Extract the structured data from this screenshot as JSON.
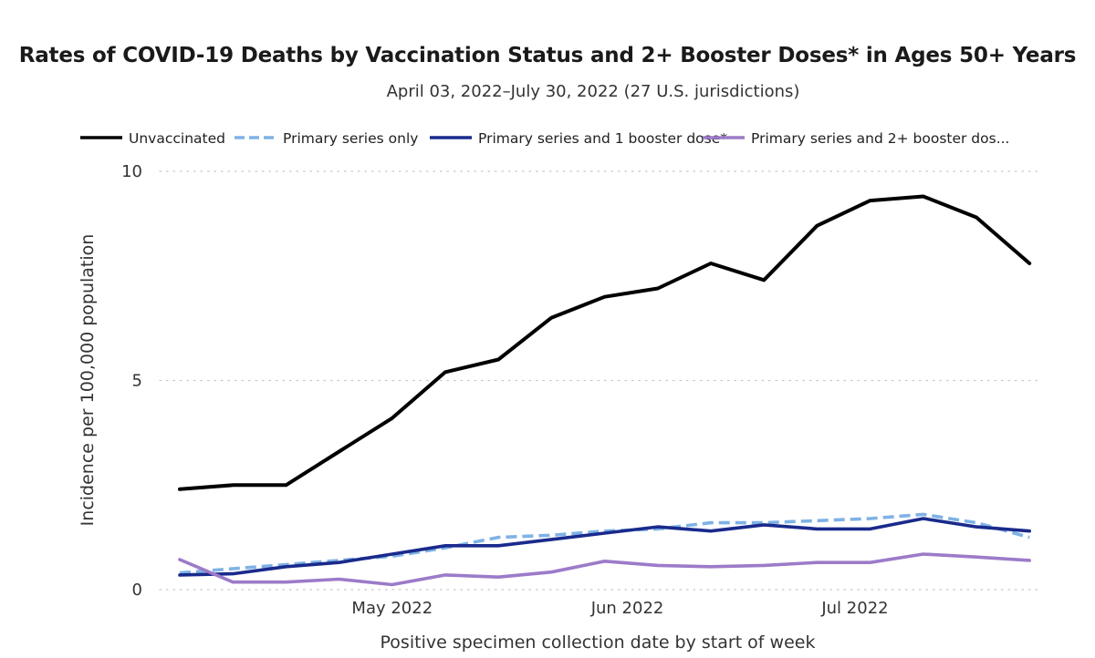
{
  "chart_data": {
    "type": "line",
    "title": "Rates of COVID-19 Deaths by Vaccination Status and 2+ Booster Doses* in Ages 50+ Years",
    "subtitle": "April 03, 2022–July 30, 2022 (27 U.S. jurisdictions)",
    "xlabel": "Positive specimen collection date by start of week",
    "ylabel": "Incidence per 100,000 population",
    "ylim": [
      0,
      10
    ],
    "yticks": [
      "0",
      "5",
      "10"
    ],
    "xticks": [
      {
        "label": "May 2022",
        "date": "2022-05-01"
      },
      {
        "label": "Jun 2022",
        "date": "2022-06-01"
      },
      {
        "label": "Jul 2022",
        "date": "2022-07-01"
      }
    ],
    "grid": "horizontal dotted",
    "legend_position": "top",
    "x": [
      "2022-04-03",
      "2022-04-10",
      "2022-04-17",
      "2022-04-24",
      "2022-05-01",
      "2022-05-08",
      "2022-05-15",
      "2022-05-22",
      "2022-05-29",
      "2022-06-05",
      "2022-06-12",
      "2022-06-19",
      "2022-06-26",
      "2022-07-03",
      "2022-07-10",
      "2022-07-17",
      "2022-07-24"
    ],
    "series": [
      {
        "name": "Unvaccinated",
        "color": "#000000",
        "dash": "solid",
        "values": [
          2.4,
          2.5,
          2.5,
          3.3,
          4.1,
          5.2,
          5.5,
          6.5,
          7.0,
          7.2,
          7.8,
          7.4,
          8.7,
          9.3,
          9.4,
          8.9,
          7.8
        ]
      },
      {
        "name": "Primary series only",
        "color": "#7fb2e5",
        "dash": "dashed",
        "values": [
          0.4,
          0.5,
          0.6,
          0.7,
          0.8,
          1.0,
          1.25,
          1.3,
          1.4,
          1.45,
          1.6,
          1.6,
          1.65,
          1.7,
          1.8,
          1.6,
          1.25
        ]
      },
      {
        "name": "Primary series and 1 booster dose*",
        "color": "#1a2a8c",
        "dash": "solid",
        "values": [
          0.35,
          0.38,
          0.55,
          0.65,
          0.85,
          1.05,
          1.05,
          1.2,
          1.35,
          1.5,
          1.4,
          1.55,
          1.45,
          1.45,
          1.7,
          1.5,
          1.4
        ]
      },
      {
        "name": "Primary series and 2+ booster dos...",
        "color": "#9c7bc9",
        "dash": "solid",
        "values": [
          0.72,
          0.18,
          0.18,
          0.25,
          0.12,
          0.35,
          0.3,
          0.42,
          0.68,
          0.58,
          0.55,
          0.58,
          0.65,
          0.65,
          0.85,
          0.78,
          0.7
        ]
      }
    ]
  }
}
